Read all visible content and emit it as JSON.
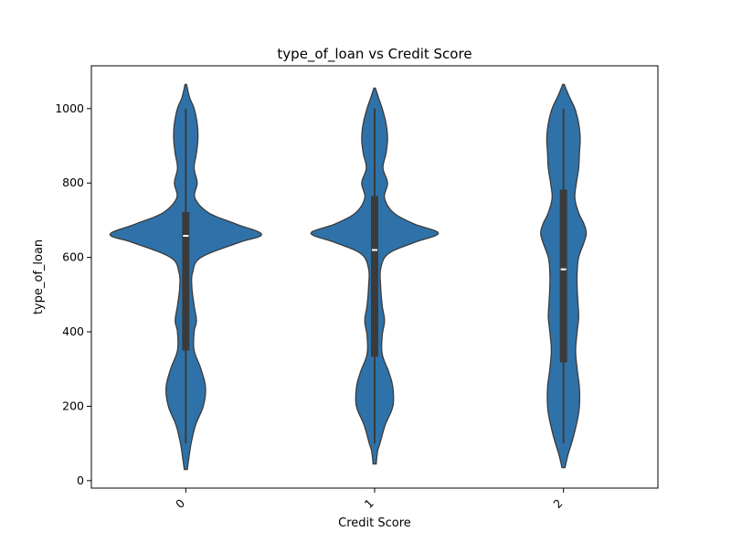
{
  "chart_data": {
    "type": "violin",
    "title": "type_of_loan vs Credit Score",
    "xlabel": "Credit Score",
    "ylabel": "type_of_loan",
    "categories": [
      "0",
      "1",
      "2"
    ],
    "yticks": [
      0,
      200,
      400,
      600,
      800,
      1000
    ],
    "ylim": [
      -20,
      1115
    ],
    "grid": false,
    "color": "#2f72a9",
    "series": [
      {
        "category": "0",
        "min": 100,
        "q1": 350,
        "median": 658,
        "q3": 722,
        "max": 1000,
        "kde_range": [
          30,
          1065
        ],
        "density": [
          [
            30,
            0.02
          ],
          [
            60,
            0.04
          ],
          [
            100,
            0.07
          ],
          [
            150,
            0.13
          ],
          [
            200,
            0.23
          ],
          [
            250,
            0.26
          ],
          [
            300,
            0.2
          ],
          [
            350,
            0.11
          ],
          [
            400,
            0.11
          ],
          [
            430,
            0.14
          ],
          [
            470,
            0.11
          ],
          [
            520,
            0.08
          ],
          [
            560,
            0.09
          ],
          [
            600,
            0.2
          ],
          [
            640,
            0.7
          ],
          [
            662,
            1.0
          ],
          [
            690,
            0.66
          ],
          [
            720,
            0.3
          ],
          [
            760,
            0.12
          ],
          [
            800,
            0.15
          ],
          [
            840,
            0.11
          ],
          [
            880,
            0.14
          ],
          [
            920,
            0.16
          ],
          [
            960,
            0.15
          ],
          [
            1000,
            0.11
          ],
          [
            1030,
            0.05
          ],
          [
            1065,
            0.01
          ]
        ]
      },
      {
        "category": "1",
        "min": 100,
        "q1": 333,
        "median": 620,
        "q3": 765,
        "max": 1000,
        "kde_range": [
          45,
          1055
        ],
        "density": [
          [
            45,
            0.02
          ],
          [
            80,
            0.04
          ],
          [
            100,
            0.07
          ],
          [
            150,
            0.14
          ],
          [
            200,
            0.24
          ],
          [
            250,
            0.24
          ],
          [
            290,
            0.19
          ],
          [
            340,
            0.1
          ],
          [
            390,
            0.1
          ],
          [
            430,
            0.13
          ],
          [
            470,
            0.1
          ],
          [
            520,
            0.08
          ],
          [
            570,
            0.08
          ],
          [
            610,
            0.18
          ],
          [
            640,
            0.52
          ],
          [
            665,
            0.84
          ],
          [
            690,
            0.52
          ],
          [
            720,
            0.25
          ],
          [
            760,
            0.13
          ],
          [
            800,
            0.17
          ],
          [
            840,
            0.11
          ],
          [
            880,
            0.15
          ],
          [
            920,
            0.17
          ],
          [
            960,
            0.15
          ],
          [
            1000,
            0.1
          ],
          [
            1030,
            0.05
          ],
          [
            1055,
            0.01
          ]
        ]
      },
      {
        "category": "2",
        "min": 100,
        "q1": 318,
        "median": 568,
        "q3": 782,
        "max": 1000,
        "kde_range": [
          35,
          1065
        ],
        "density": [
          [
            35,
            0.02
          ],
          [
            70,
            0.06
          ],
          [
            110,
            0.12
          ],
          [
            160,
            0.18
          ],
          [
            200,
            0.21
          ],
          [
            250,
            0.21
          ],
          [
            300,
            0.18
          ],
          [
            350,
            0.16
          ],
          [
            400,
            0.18
          ],
          [
            440,
            0.2
          ],
          [
            480,
            0.19
          ],
          [
            520,
            0.18
          ],
          [
            560,
            0.18
          ],
          [
            600,
            0.2
          ],
          [
            640,
            0.27
          ],
          [
            665,
            0.3
          ],
          [
            690,
            0.27
          ],
          [
            720,
            0.2
          ],
          [
            760,
            0.15
          ],
          [
            800,
            0.17
          ],
          [
            840,
            0.2
          ],
          [
            880,
            0.21
          ],
          [
            920,
            0.22
          ],
          [
            960,
            0.2
          ],
          [
            1000,
            0.15
          ],
          [
            1035,
            0.07
          ],
          [
            1065,
            0.01
          ]
        ]
      }
    ]
  }
}
